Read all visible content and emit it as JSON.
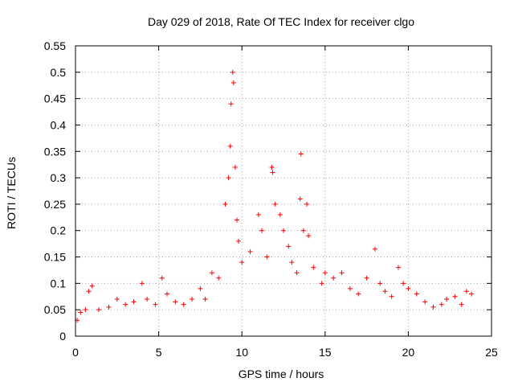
{
  "chart_data": {
    "type": "scatter",
    "title": "Day 029 of 2018, Rate Of TEC Index for receiver clgo",
    "xlabel": "GPS time / hours",
    "ylabel": "ROTI / TECUs",
    "xlim": [
      0,
      25
    ],
    "ylim": [
      0,
      0.55
    ],
    "xticks": [
      0,
      5,
      10,
      15,
      20,
      25
    ],
    "xtick_labels": [
      "0",
      "5",
      "10",
      "15",
      "20",
      "25"
    ],
    "yticks": [
      0,
      0.05,
      0.1,
      0.15,
      0.2,
      0.25,
      0.3,
      0.35,
      0.4,
      0.45,
      0.5,
      0.55
    ],
    "ytick_labels": [
      "0",
      "0.05",
      "0.1",
      "0.15",
      "0.2",
      "0.25",
      "0.3",
      "0.35",
      "0.4",
      "0.45",
      "0.5",
      "0.55"
    ],
    "grid": true,
    "legend": "none",
    "marker": "+",
    "color": "#ff0000",
    "series": [
      {
        "name": "ROTI",
        "points": [
          [
            0.1,
            0.03
          ],
          [
            0.3,
            0.045
          ],
          [
            0.6,
            0.05
          ],
          [
            0.8,
            0.085
          ],
          [
            1.0,
            0.095
          ],
          [
            1.4,
            0.05
          ],
          [
            2.0,
            0.055
          ],
          [
            2.5,
            0.07
          ],
          [
            3.0,
            0.06
          ],
          [
            3.5,
            0.065
          ],
          [
            4.0,
            0.1
          ],
          [
            4.3,
            0.07
          ],
          [
            4.8,
            0.06
          ],
          [
            5.2,
            0.11
          ],
          [
            5.5,
            0.08
          ],
          [
            6.0,
            0.065
          ],
          [
            6.5,
            0.06
          ],
          [
            7.0,
            0.07
          ],
          [
            7.5,
            0.09
          ],
          [
            7.8,
            0.07
          ],
          [
            8.2,
            0.12
          ],
          [
            8.6,
            0.11
          ],
          [
            9.0,
            0.25
          ],
          [
            9.2,
            0.3
          ],
          [
            9.3,
            0.36
          ],
          [
            9.35,
            0.44
          ],
          [
            9.45,
            0.5
          ],
          [
            9.5,
            0.48
          ],
          [
            9.6,
            0.32
          ],
          [
            9.7,
            0.22
          ],
          [
            9.8,
            0.18
          ],
          [
            10.0,
            0.14
          ],
          [
            10.5,
            0.16
          ],
          [
            11.0,
            0.23
          ],
          [
            11.2,
            0.2
          ],
          [
            11.5,
            0.15
          ],
          [
            11.8,
            0.32
          ],
          [
            11.85,
            0.31
          ],
          [
            12.0,
            0.25
          ],
          [
            12.3,
            0.23
          ],
          [
            12.5,
            0.2
          ],
          [
            12.8,
            0.17
          ],
          [
            13.0,
            0.14
          ],
          [
            13.3,
            0.12
          ],
          [
            13.5,
            0.26
          ],
          [
            13.55,
            0.345
          ],
          [
            13.7,
            0.2
          ],
          [
            13.9,
            0.25
          ],
          [
            14.0,
            0.19
          ],
          [
            14.3,
            0.13
          ],
          [
            14.8,
            0.1
          ],
          [
            15.0,
            0.12
          ],
          [
            15.5,
            0.11
          ],
          [
            16.0,
            0.12
          ],
          [
            16.5,
            0.09
          ],
          [
            17.0,
            0.08
          ],
          [
            17.5,
            0.11
          ],
          [
            18.0,
            0.165
          ],
          [
            18.3,
            0.1
          ],
          [
            18.6,
            0.085
          ],
          [
            19.0,
            0.075
          ],
          [
            19.4,
            0.13
          ],
          [
            19.7,
            0.1
          ],
          [
            20.0,
            0.09
          ],
          [
            20.5,
            0.08
          ],
          [
            21.0,
            0.065
          ],
          [
            21.5,
            0.055
          ],
          [
            22.0,
            0.06
          ],
          [
            22.3,
            0.07
          ],
          [
            22.8,
            0.075
          ],
          [
            23.2,
            0.06
          ],
          [
            23.5,
            0.085
          ],
          [
            23.8,
            0.08
          ]
        ]
      }
    ]
  }
}
